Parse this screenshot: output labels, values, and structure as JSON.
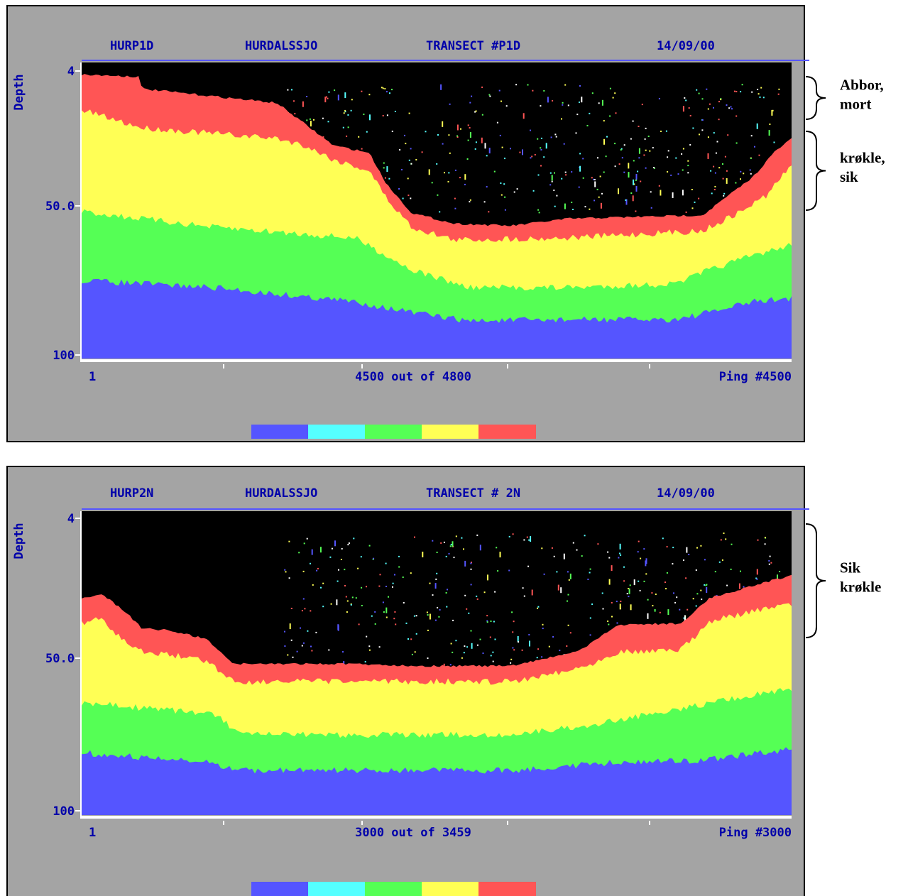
{
  "panels": [
    {
      "header": {
        "file": "HURP1D",
        "lake": "HURDALSSJO",
        "transect": "TRANSECT #P1D",
        "date": "14/09/00"
      },
      "axis": {
        "title": "Depth",
        "ticks": [
          "4",
          "50.0",
          "100"
        ]
      },
      "footer": {
        "start": "1",
        "progress": "4500 out of 4800",
        "ping": "Ping #4500"
      },
      "annotations": [
        {
          "lines": [
            "Abbor,",
            "mort"
          ]
        },
        {
          "lines": [
            "krøkle,",
            "sik"
          ]
        }
      ]
    },
    {
      "header": {
        "file": "HURP2N",
        "lake": "HURDALSSJO",
        "transect": "TRANSECT # 2N",
        "date": "14/09/00"
      },
      "axis": {
        "title": "Depth",
        "ticks": [
          "4",
          "50.0",
          "100"
        ]
      },
      "footer": {
        "start": "1",
        "progress": "3000 out of 3459",
        "ping": "Ping #3000"
      },
      "annotations": [
        {
          "lines": [
            "Sik",
            "krøkle"
          ]
        }
      ]
    }
  ]
}
